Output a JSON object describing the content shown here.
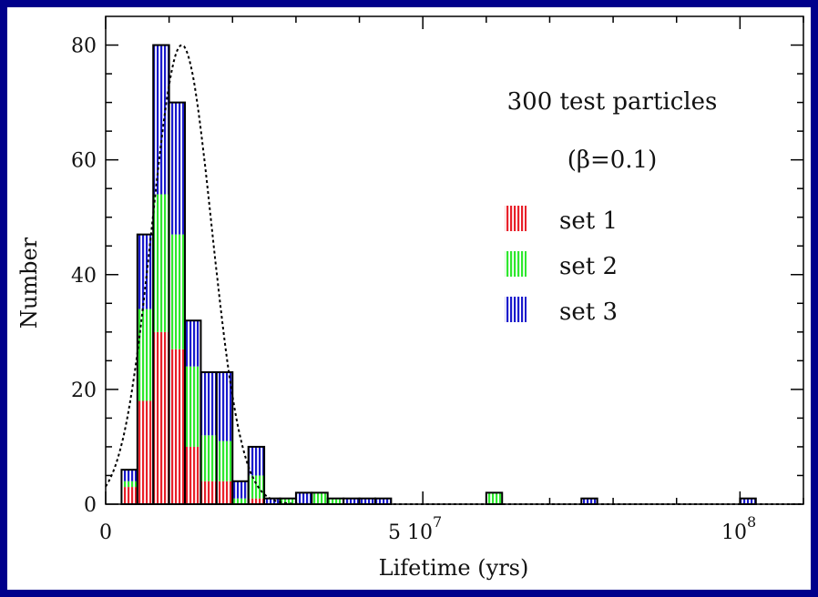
{
  "chart_data": {
    "type": "bar",
    "subtype": "stacked-histogram",
    "xlabel": "Lifetime (yrs)",
    "ylabel": "Number",
    "xlim": [
      0,
      110000000
    ],
    "ylim": [
      0,
      85
    ],
    "x_ticks": [
      {
        "value": 0,
        "label": "0"
      },
      {
        "value": 50000000,
        "label": "5 10",
        "exp": "7"
      },
      {
        "value": 100000000,
        "label": "10",
        "exp": "8"
      }
    ],
    "y_ticks": [
      0,
      20,
      40,
      60,
      80
    ],
    "bin_width": 2500000,
    "bin_starts": [
      2500000,
      5000000,
      7500000,
      10000000,
      12500000,
      15000000,
      17500000,
      20000000,
      22500000,
      25000000,
      27500000,
      30000000,
      32500000,
      35000000,
      37500000,
      40000000,
      42500000,
      60000000,
      75000000,
      100000000
    ],
    "series": [
      {
        "name": "set 1",
        "color": "#e8202a",
        "values": [
          3,
          18,
          30,
          27,
          10,
          4,
          4,
          0,
          1,
          0,
          0,
          0,
          0,
          0,
          0,
          0,
          0,
          0,
          0,
          0
        ]
      },
      {
        "name": "set 2",
        "color": "#2ee82e",
        "values": [
          1,
          16,
          24,
          20,
          14,
          8,
          7,
          1,
          4,
          0,
          1,
          0,
          2,
          1,
          0,
          0,
          0,
          2,
          0,
          0
        ]
      },
      {
        "name": "set 3",
        "color": "#1a1acc",
        "values": [
          2,
          13,
          26,
          23,
          8,
          11,
          12,
          3,
          5,
          1,
          0,
          2,
          0,
          0,
          1,
          1,
          1,
          0,
          1,
          1
        ]
      }
    ],
    "totals": [
      6,
      47,
      80,
      70,
      32,
      23,
      23,
      4,
      10,
      1,
      1,
      2,
      2,
      1,
      1,
      1,
      1,
      2,
      1,
      1
    ],
    "fit_curve": {
      "style": "dotted",
      "peak_x": 12000000,
      "peak_y": 80,
      "sigma": 4700000
    },
    "annotations": [
      "300 test particles",
      "(β=0.1)"
    ],
    "legend_position": "right-middle",
    "grid": false
  }
}
